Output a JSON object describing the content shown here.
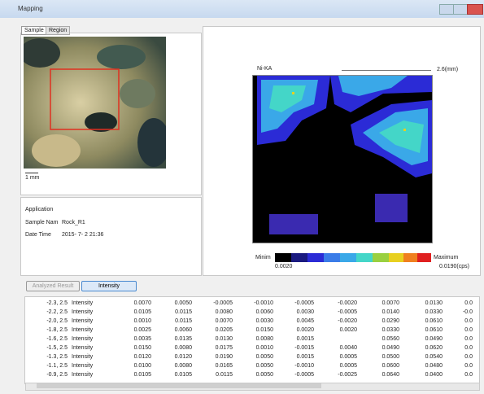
{
  "window": {
    "title": "Mapping"
  },
  "tabs": [
    "Sample",
    "Region"
  ],
  "sample": {
    "scale": "1 mm"
  },
  "info": {
    "application": "Application",
    "sample_label": "Sample Nam",
    "sample_value": "Rock_R1",
    "date_label": "Date Time",
    "date_value": "2015- 7- 2 21:36"
  },
  "map": {
    "element": "Ni-KA",
    "size": "2.6(mm)",
    "min_label": "Minim",
    "min_value": "0.0020",
    "max_label": "Maximum",
    "max_value": "0.0190(cps)"
  },
  "buttons": [
    "Analyzed Result",
    "Intensity"
  ],
  "table": {
    "rows": [
      [
        "-2.3, 2.5",
        "Intensity",
        "0.0070",
        "0.0050",
        "-0.0005",
        "-0.0010",
        "-0.0005",
        "-0.0020",
        "0.0070",
        "0.0130",
        "0.0"
      ],
      [
        "-2.2, 2.5",
        "Intensity",
        "0.0105",
        "0.0115",
        "0.0080",
        "0.0060",
        "0.0030",
        "-0.0005",
        "0.0140",
        "0.0330",
        "-0.0"
      ],
      [
        "-2.0, 2.5",
        "Intensity",
        "0.0010",
        "0.0115",
        "0.0070",
        "0.0030",
        "0.0045",
        "-0.0020",
        "0.0290",
        "0.0610",
        "0.0"
      ],
      [
        "-1.8, 2.5",
        "Intensity",
        "0.0025",
        "0.0060",
        "0.0205",
        "0.0150",
        "0.0020",
        "0.0020",
        "0.0330",
        "0.0610",
        "0.0"
      ],
      [
        "-1.6, 2.5",
        "Intensity",
        "0.0035",
        "0.0135",
        "0.0130",
        "0.0080",
        "0.0015",
        null,
        "0.0560",
        "0.0490",
        "0.0"
      ],
      [
        "-1.5, 2.5",
        "Intensity",
        "0.0150",
        "0.0080",
        "0.0175",
        "0.0010",
        "-0.0015",
        "0.0040",
        "0.0490",
        "0.0620",
        "0.0"
      ],
      [
        "-1.3, 2.5",
        "Intensity",
        "0.0120",
        "0.0120",
        "0.0190",
        "0.0050",
        "0.0015",
        "0.0005",
        "0.0500",
        "0.0540",
        "0.0"
      ],
      [
        "-1.1, 2.5",
        "Intensity",
        "0.0100",
        "0.0080",
        "0.0165",
        "0.0050",
        "-0.0010",
        "0.0005",
        "0.0600",
        "0.0480",
        "0.0"
      ],
      [
        "-0.9, 2.5",
        "Intensity",
        "0.0105",
        "0.0105",
        "0.0115",
        "0.0050",
        "-0.0005",
        "-0.0025",
        "0.0640",
        "0.0400",
        "0.0"
      ]
    ]
  }
}
